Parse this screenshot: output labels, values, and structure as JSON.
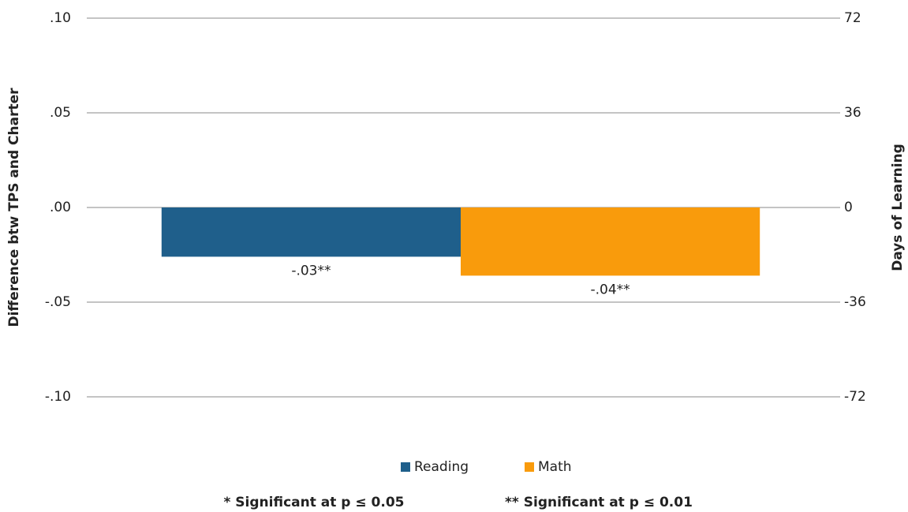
{
  "chart_data": {
    "type": "bar",
    "y_label": "Difference btw TPS and Charter",
    "y2_label": "Days of Learning",
    "categories": [
      null
    ],
    "series": [
      {
        "name": "Reading",
        "color": "#1f5f8b",
        "values": [
          -0.026
        ],
        "value_labels": [
          "-.03**"
        ]
      },
      {
        "name": "Math",
        "color": "#f99b0c",
        "values": [
          -0.036
        ],
        "value_labels": [
          "-.04**"
        ]
      }
    ],
    "ylim": [
      -0.1,
      0.1
    ],
    "yticks": [
      {
        "value": -0.1,
        "label": "-.10"
      },
      {
        "value": -0.05,
        "label": "-.05"
      },
      {
        "value": 0,
        "label": ".00"
      },
      {
        "value": 0.05,
        "label": ".05"
      },
      {
        "value": 0.1,
        "label": ".10"
      }
    ],
    "y2lim": [
      -72,
      72
    ],
    "y2ticks": [
      -72,
      -36,
      0,
      36,
      72
    ],
    "grid": true,
    "legend": "bottom",
    "footnotes": [
      "* Significant at p ≤ 0.05",
      "** Significant at p ≤ 0.01"
    ]
  }
}
